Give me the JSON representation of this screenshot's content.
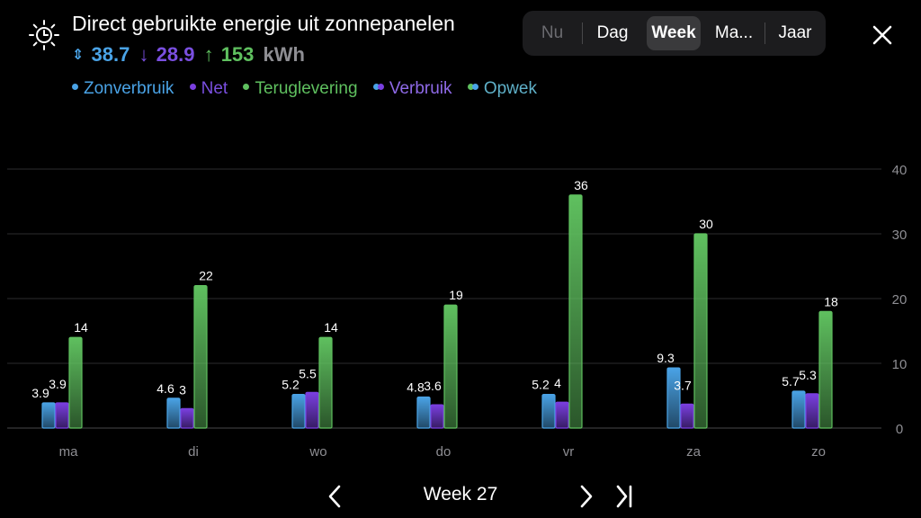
{
  "header": {
    "title": "Direct gebruikte energie uit zonnepanelen",
    "stats": {
      "solar": "38.7",
      "grid": "28.9",
      "return": "153",
      "unit": "kWh"
    }
  },
  "legend": [
    {
      "label": "Zonverbruik",
      "color": "#4aa3e6"
    },
    {
      "label": "Net",
      "color": "#7a3fe0"
    },
    {
      "label": "Teruglevering",
      "color": "#5fc05f"
    },
    {
      "label": "Verbruik",
      "colors": [
        "#4aa3e6",
        "#7a3fe0"
      ]
    },
    {
      "label": "Opwek",
      "colors": [
        "#5fc05f",
        "#4aa3e6"
      ]
    }
  ],
  "period_tabs": [
    {
      "label": "Nu",
      "state": "disabled"
    },
    {
      "label": "Dag",
      "state": "normal"
    },
    {
      "label": "Week",
      "state": "active"
    },
    {
      "label": "Ma...",
      "state": "normal"
    },
    {
      "label": "Jaar",
      "state": "normal"
    }
  ],
  "navigation": {
    "week_label": "Week 27"
  },
  "chart_data": {
    "type": "bar",
    "categories": [
      "ma",
      "di",
      "wo",
      "do",
      "vr",
      "za",
      "zo"
    ],
    "series": [
      {
        "name": "Zonverbruik",
        "color": "#4aa3e6",
        "values": [
          3.9,
          4.6,
          5.2,
          4.8,
          5.2,
          9.3,
          5.7
        ],
        "labels": [
          "3.9",
          "4.6",
          "5.2",
          "4.8",
          "5.2",
          "9.3",
          "5.7"
        ]
      },
      {
        "name": "Net",
        "color": "#7a3fe0",
        "values": [
          3.9,
          3,
          5.5,
          3.6,
          4,
          3.7,
          5.3
        ],
        "labels": [
          "3.9",
          "3",
          "5.5",
          "3.6",
          "4",
          "3.7",
          "5.3"
        ]
      },
      {
        "name": "Teruglevering",
        "color": "#5fc05f",
        "values": [
          14,
          22,
          14,
          19,
          36,
          30,
          18
        ],
        "labels": [
          "14",
          "22",
          "14",
          "19",
          "36",
          "30",
          "18"
        ]
      }
    ],
    "ylim": [
      0,
      40
    ],
    "yticks": [
      "0",
      "10",
      "20",
      "30",
      "40"
    ],
    "y_axis_side": "right",
    "grid": true
  }
}
